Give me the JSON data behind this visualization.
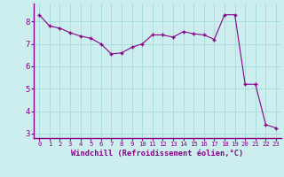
{
  "x": [
    0,
    1,
    2,
    3,
    4,
    5,
    6,
    7,
    8,
    9,
    10,
    11,
    12,
    13,
    14,
    15,
    16,
    17,
    18,
    19,
    20,
    21,
    22,
    23
  ],
  "y": [
    8.3,
    7.8,
    7.7,
    7.5,
    7.35,
    7.25,
    7.0,
    6.55,
    6.6,
    6.85,
    7.0,
    7.4,
    7.4,
    7.3,
    7.55,
    7.45,
    7.4,
    7.2,
    8.3,
    8.3,
    5.2,
    5.2,
    3.4,
    3.25
  ],
  "line_color": "#880088",
  "marker_color": "#880088",
  "bg_color": "#cceeee",
  "grid_color": "#aadddd",
  "axis_label_color": "#880088",
  "tick_color": "#880088",
  "spine_color": "#880088",
  "xlabel": "Windchill (Refroidissement éolien,°C)",
  "xlim": [
    -0.5,
    23.5
  ],
  "ylim": [
    2.8,
    8.8
  ],
  "yticks": [
    3,
    4,
    5,
    6,
    7,
    8
  ],
  "xticks": [
    0,
    1,
    2,
    3,
    4,
    5,
    6,
    7,
    8,
    9,
    10,
    11,
    12,
    13,
    14,
    15,
    16,
    17,
    18,
    19,
    20,
    21,
    22,
    23
  ]
}
